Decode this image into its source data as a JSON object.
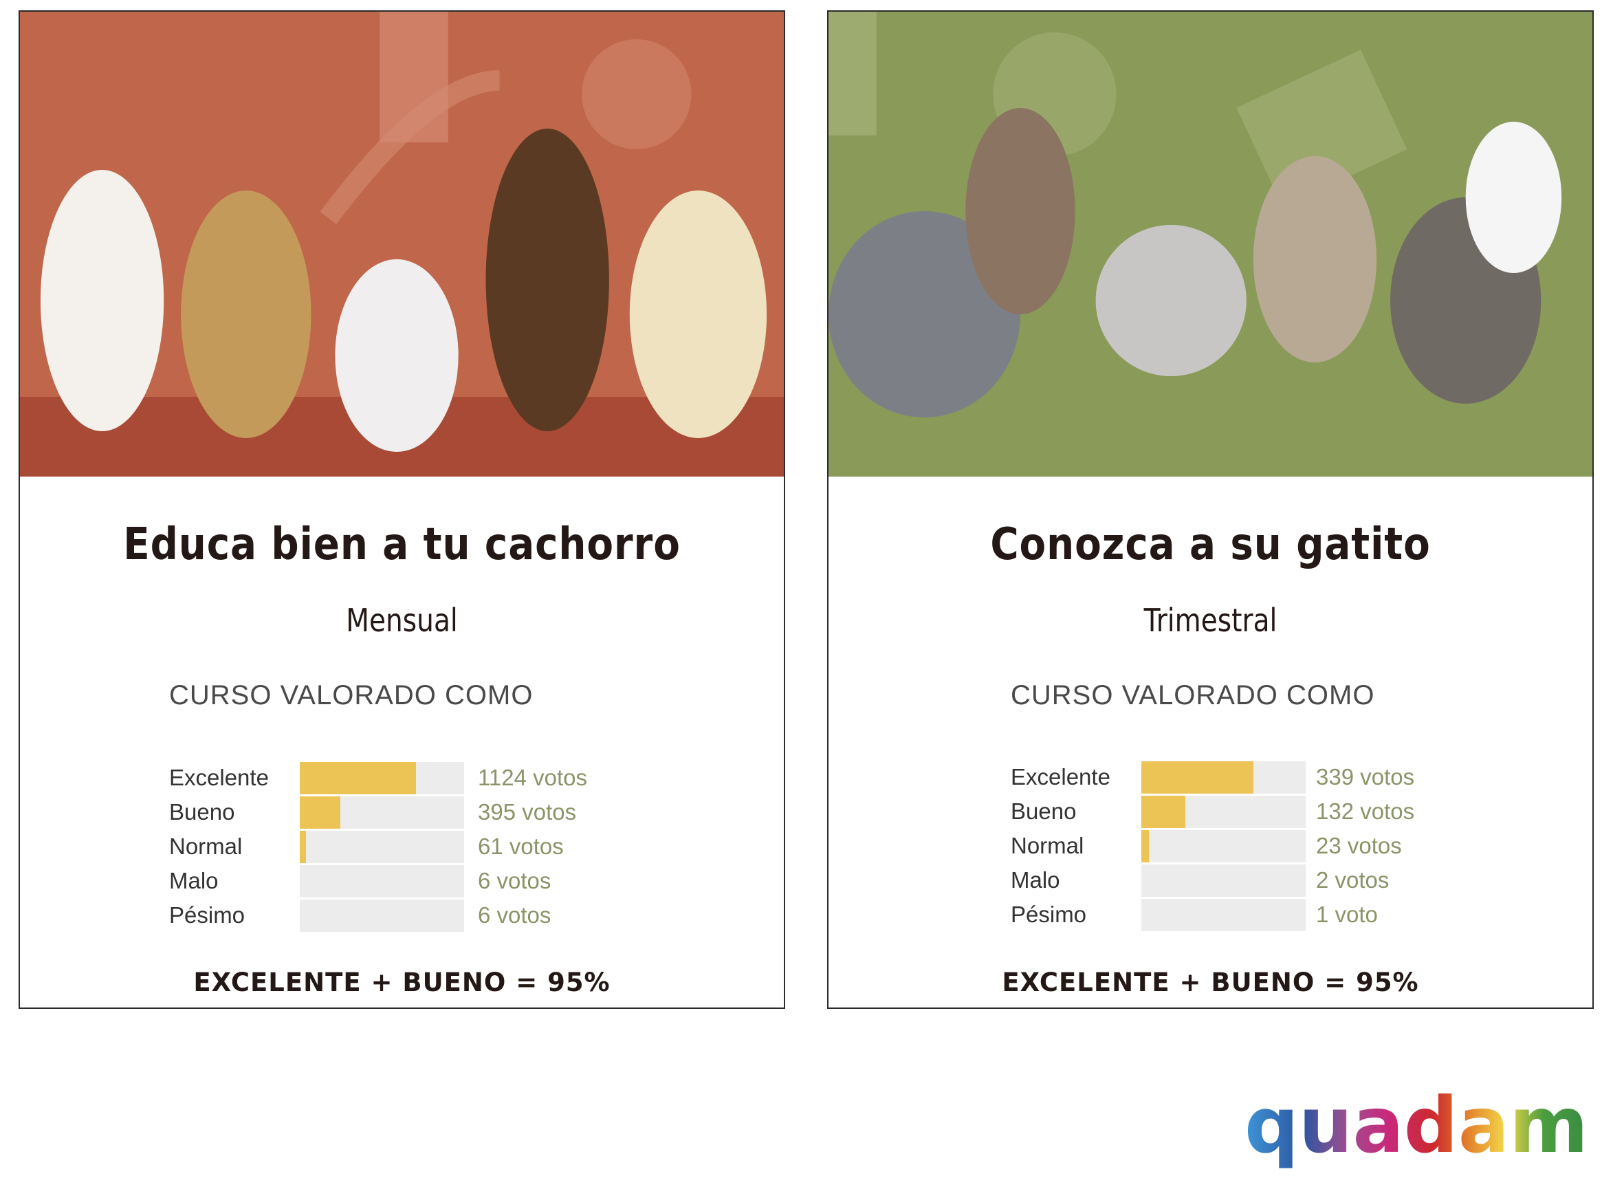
{
  "colors": {
    "bar_fill": "#ecc456",
    "bar_track": "#ececec",
    "votes_text": "#8a9468",
    "dog_bg": "#c0664a",
    "cat_bg": "#8a9a58"
  },
  "cards": [
    {
      "image": "dog-puppies-banner",
      "title": "Educa bien a tu cachorro",
      "frequency": "Mensual",
      "rated_label": "CURSO VALORADO COMO",
      "ratings": [
        {
          "label": "Excelente",
          "votes": 1124,
          "votes_text": "1124 votos",
          "fill": 0.706
        },
        {
          "label": "Bueno",
          "votes": 395,
          "votes_text": "395 votos",
          "fill": 0.248
        },
        {
          "label": "Normal",
          "votes": 61,
          "votes_text": "61 votos",
          "fill": 0.038
        },
        {
          "label": "Malo",
          "votes": 6,
          "votes_text": "6 votos",
          "fill": 0.0
        },
        {
          "label": "Pésimo",
          "votes": 6,
          "votes_text": "6 votos",
          "fill": 0.0
        }
      ],
      "summary": "EXCELENTE + BUENO = 95%"
    },
    {
      "image": "kittens-banner",
      "title": "Conozca a su gatito",
      "frequency": "Trimestral",
      "rated_label": "CURSO VALORADO COMO",
      "ratings": [
        {
          "label": "Excelente",
          "votes": 339,
          "votes_text": "339 votos",
          "fill": 0.682
        },
        {
          "label": "Bueno",
          "votes": 132,
          "votes_text": "132 votos",
          "fill": 0.266
        },
        {
          "label": "Normal",
          "votes": 23,
          "votes_text": "23 votos",
          "fill": 0.046
        },
        {
          "label": "Malo",
          "votes": 2,
          "votes_text": "2 votos",
          "fill": 0.0
        },
        {
          "label": "Pésimo",
          "votes": 1,
          "votes_text": "1 voto",
          "fill": 0.0
        }
      ],
      "summary": "EXCELENTE + BUENO = 95%"
    }
  ],
  "logo": {
    "text": "quadam"
  }
}
